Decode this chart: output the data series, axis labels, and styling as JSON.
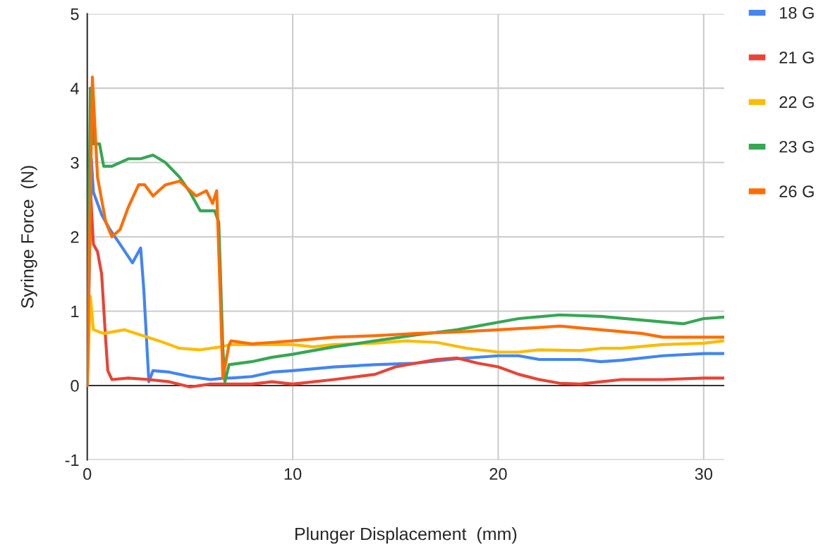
{
  "chart_data": {
    "type": "line",
    "xlabel": "Plunger Displacement  (mm)",
    "ylabel": "Syringe Force  (N)",
    "xlim": [
      0,
      31
    ],
    "ylim": [
      -1,
      5
    ],
    "xticks": [
      0,
      10,
      20,
      30
    ],
    "yticks": [
      -1,
      0,
      1,
      2,
      3,
      4,
      5
    ],
    "grid": true,
    "legend": "top right",
    "marker": "none",
    "line_style": "solid",
    "ref_lines": [
      {
        "axis": "y",
        "value": 0,
        "color": "#333333"
      }
    ],
    "series": [
      {
        "name": "18 G",
        "color": "#4285f4",
        "x": [
          0,
          0.2,
          0.3,
          0.7,
          1.1,
          1.6,
          2.2,
          2.6,
          2.75,
          3.0,
          3.2,
          4,
          5,
          6,
          6.7,
          7,
          8,
          9,
          10,
          12,
          14,
          16,
          18,
          20,
          21,
          22,
          24,
          25,
          26,
          28,
          30,
          31
        ],
        "values": [
          0,
          3.05,
          2.6,
          2.3,
          2.1,
          1.9,
          1.65,
          1.85,
          1.3,
          0.05,
          0.2,
          0.18,
          0.12,
          0.08,
          0.1,
          0.1,
          0.12,
          0.18,
          0.2,
          0.25,
          0.28,
          0.3,
          0.36,
          0.4,
          0.4,
          0.35,
          0.35,
          0.32,
          0.34,
          0.4,
          0.43,
          0.43
        ]
      },
      {
        "name": "21 G",
        "color": "#ea4335",
        "x": [
          0,
          0.1,
          0.3,
          0.5,
          0.7,
          0.9,
          1.0,
          1.2,
          2,
          3,
          4,
          5,
          6,
          7,
          8,
          9,
          10,
          12,
          14,
          15,
          16,
          17,
          18,
          19,
          20,
          21,
          22,
          23,
          24,
          25,
          26,
          28,
          30,
          31
        ],
        "values": [
          0,
          2.9,
          1.9,
          1.8,
          1.5,
          0.6,
          0.2,
          0.08,
          0.1,
          0.08,
          0.05,
          -0.02,
          0.02,
          0.02,
          0.02,
          0.05,
          0.02,
          0.08,
          0.15,
          0.25,
          0.3,
          0.35,
          0.37,
          0.3,
          0.25,
          0.15,
          0.08,
          0.03,
          0.02,
          0.05,
          0.08,
          0.08,
          0.1,
          0.1
        ]
      },
      {
        "name": "22 G",
        "color": "#fbbc04",
        "x": [
          0,
          0.15,
          0.3,
          0.8,
          1.8,
          2.6,
          3.5,
          4.5,
          5.5,
          6.5,
          7,
          8,
          9,
          10,
          11,
          12,
          14,
          15.5,
          17,
          18.5,
          20,
          21,
          22,
          24,
          25,
          26,
          28,
          30,
          31
        ],
        "values": [
          0,
          1.2,
          0.75,
          0.7,
          0.75,
          0.68,
          0.6,
          0.5,
          0.48,
          0.52,
          0.55,
          0.55,
          0.55,
          0.55,
          0.52,
          0.55,
          0.57,
          0.6,
          0.58,
          0.5,
          0.45,
          0.45,
          0.48,
          0.47,
          0.5,
          0.5,
          0.55,
          0.57,
          0.6
        ]
      },
      {
        "name": "23 G",
        "color": "#34a853",
        "x": [
          0,
          0.15,
          0.3,
          0.6,
          0.8,
          1.2,
          2,
          2.6,
          3.2,
          3.8,
          4.5,
          5,
          5.5,
          6.2,
          6.4,
          6.6,
          6.7,
          6.9,
          8,
          9,
          10,
          12,
          14,
          16,
          18,
          20,
          21,
          23,
          25,
          27,
          29,
          30,
          31
        ],
        "values": [
          0,
          4.0,
          3.25,
          3.25,
          2.95,
          2.95,
          3.05,
          3.05,
          3.1,
          3.0,
          2.8,
          2.6,
          2.35,
          2.35,
          2.2,
          0.5,
          0.05,
          0.28,
          0.32,
          0.38,
          0.42,
          0.52,
          0.6,
          0.68,
          0.75,
          0.85,
          0.9,
          0.95,
          0.93,
          0.88,
          0.83,
          0.9,
          0.92
        ]
      },
      {
        "name": "26 G",
        "color": "#ff6d01",
        "x": [
          0,
          0.25,
          0.5,
          0.9,
          1.2,
          1.6,
          2,
          2.5,
          2.8,
          3.2,
          3.8,
          4.5,
          5.3,
          5.8,
          6.1,
          6.3,
          6.5,
          6.6,
          6.9,
          7,
          8,
          9,
          10,
          12,
          14,
          16,
          18,
          20,
          22,
          23,
          25,
          27,
          28,
          30,
          31
        ],
        "values": [
          0,
          4.15,
          2.8,
          2.2,
          2.0,
          2.1,
          2.4,
          2.7,
          2.7,
          2.55,
          2.7,
          2.75,
          2.55,
          2.62,
          2.45,
          2.62,
          1.0,
          0.1,
          0.55,
          0.6,
          0.56,
          0.58,
          0.6,
          0.65,
          0.67,
          0.7,
          0.72,
          0.75,
          0.78,
          0.8,
          0.75,
          0.7,
          0.65,
          0.65,
          0.65
        ]
      }
    ]
  }
}
